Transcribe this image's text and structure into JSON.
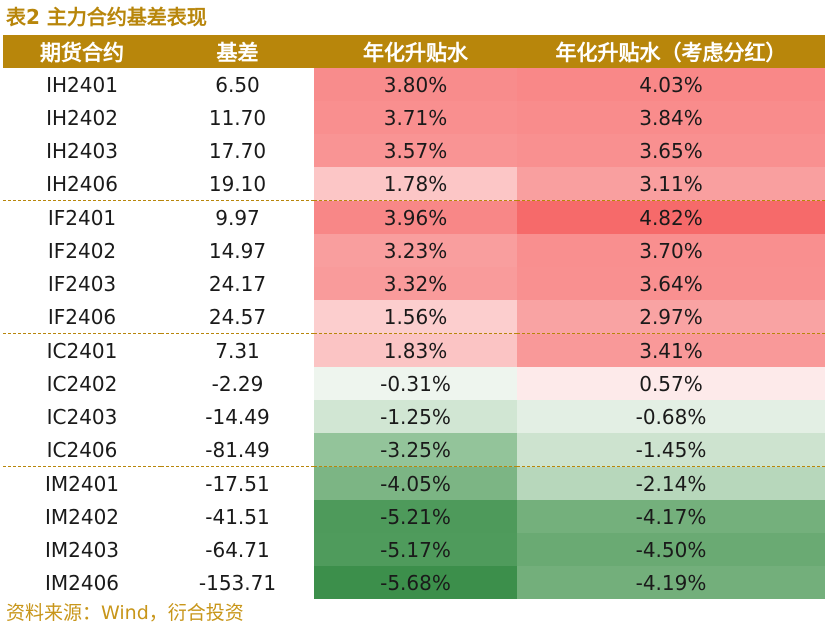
{
  "title": "表2 主力合约基差表现",
  "source": "资料来源：Wind，衍合投资",
  "headers": [
    "期货合约",
    "基差",
    "年化升贴水",
    "年化升贴水（考虑分红）"
  ],
  "colors": {
    "accent": "#b8860b",
    "source_text": "#c8961a"
  },
  "rows": [
    {
      "contract": "IH2401",
      "basis": "6.50",
      "annualized": "3.80%",
      "annualized_div": "4.03%",
      "bg1": "#f88c8c",
      "bg2": "#f98888",
      "group_end": false
    },
    {
      "contract": "IH2402",
      "basis": "11.70",
      "annualized": "3.71%",
      "annualized_div": "3.84%",
      "bg1": "#f98f8f",
      "bg2": "#f98c8c",
      "group_end": false
    },
    {
      "contract": "IH2403",
      "basis": "17.70",
      "annualized": "3.57%",
      "annualized_div": "3.65%",
      "bg1": "#f99494",
      "bg2": "#f99090",
      "group_end": false
    },
    {
      "contract": "IH2406",
      "basis": "19.10",
      "annualized": "1.78%",
      "annualized_div": "3.11%",
      "bg1": "#fcc6c6",
      "bg2": "#f99f9f",
      "group_end": true
    },
    {
      "contract": "IF2401",
      "basis": "9.97",
      "annualized": "3.96%",
      "annualized_div": "4.82%",
      "bg1": "#f88787",
      "bg2": "#f66a6a",
      "group_end": false
    },
    {
      "contract": "IF2402",
      "basis": "14.97",
      "annualized": "3.23%",
      "annualized_div": "3.70%",
      "bg1": "#f99e9e",
      "bg2": "#f98f8f",
      "group_end": false
    },
    {
      "contract": "IF2403",
      "basis": "24.17",
      "annualized": "3.32%",
      "annualized_div": "3.64%",
      "bg1": "#f99b9b",
      "bg2": "#f99090",
      "group_end": false
    },
    {
      "contract": "IF2406",
      "basis": "24.57",
      "annualized": "1.56%",
      "annualized_div": "2.97%",
      "bg1": "#fccece",
      "bg2": "#f9a3a3",
      "group_end": true
    },
    {
      "contract": "IC2401",
      "basis": "7.31",
      "annualized": "1.83%",
      "annualized_div": "3.41%",
      "bg1": "#fbc4c4",
      "bg2": "#f99999",
      "group_end": false
    },
    {
      "contract": "IC2402",
      "basis": "-2.29",
      "annualized": "-0.31%",
      "annualized_div": "0.57%",
      "bg1": "#eef5ee",
      "bg2": "#fdeaea",
      "group_end": false
    },
    {
      "contract": "IC2403",
      "basis": "-14.49",
      "annualized": "-1.25%",
      "annualized_div": "-0.68%",
      "bg1": "#d1e6d3",
      "bg2": "#e3efe4",
      "group_end": false
    },
    {
      "contract": "IC2406",
      "basis": "-81.49",
      "annualized": "-3.25%",
      "annualized_div": "-1.45%",
      "bg1": "#93c49a",
      "bg2": "#cde3cf",
      "group_end": true
    },
    {
      "contract": "IM2401",
      "basis": "-17.51",
      "annualized": "-4.05%",
      "annualized_div": "-2.14%",
      "bg1": "#7cb584",
      "bg2": "#b7d7bb",
      "group_end": false
    },
    {
      "contract": "IM2402",
      "basis": "-41.51",
      "annualized": "-5.21%",
      "annualized_div": "-4.17%",
      "bg1": "#4e9a5b",
      "bg2": "#74b07c",
      "group_end": false
    },
    {
      "contract": "IM2403",
      "basis": "-64.71",
      "annualized": "-5.17%",
      "annualized_div": "-4.50%",
      "bg1": "#4f9b5c",
      "bg2": "#6aaa73",
      "group_end": false
    },
    {
      "contract": "IM2406",
      "basis": "-153.71",
      "annualized": "-5.68%",
      "annualized_div": "-4.19%",
      "bg1": "#3c8f4b",
      "bg2": "#73af7b",
      "group_end": false
    }
  ]
}
